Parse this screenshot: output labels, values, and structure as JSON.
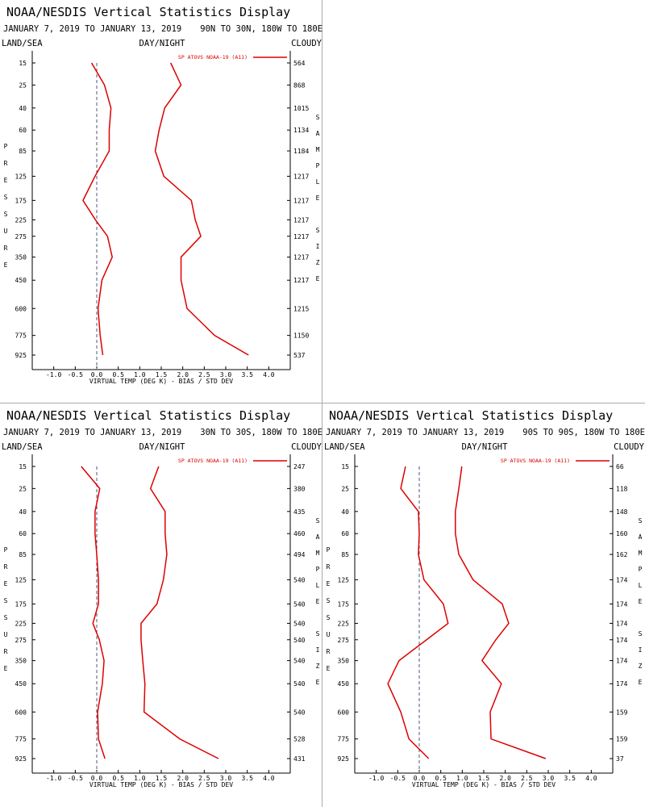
{
  "chart_data": [
    {
      "type": "line",
      "title": "NOAA/NESDIS Vertical Statistics Display",
      "subtitle": "JANUARY 7, 2019 TO JANUARY 13, 2019",
      "region": "90N TO 30N, 180W TO 180E",
      "land_sea": "LAND/SEA",
      "day_night": "DAY/NIGHT",
      "cloudy": "CLOUDY",
      "ylabel": "PRESSURE",
      "y2label": "SAMPLE SIZE",
      "xlabel": "VIRTUAL TEMP (DEG K) - BIAS / STD DEV",
      "ylim": [
        15,
        925
      ],
      "yticks": [
        15,
        25,
        40,
        60,
        85,
        125,
        175,
        225,
        275,
        350,
        450,
        600,
        775,
        925
      ],
      "sample_size": [
        564,
        868,
        1015,
        1134,
        1184,
        1217,
        1217,
        1217,
        1217,
        1217,
        1217,
        1215,
        1150,
        537
      ],
      "xlim": [
        -1.5,
        4.5
      ],
      "xticks": [
        {
          "value": -1,
          "label": "-1.0"
        },
        -0.5,
        {
          "value": 0,
          "label": "0.0"
        },
        0.5,
        {
          "value": 1,
          "label": "1.0"
        },
        1.5,
        {
          "value": 2,
          "label": "2.0"
        },
        2.5,
        {
          "value": 3,
          "label": "3.0"
        },
        3.5,
        {
          "value": 4,
          "label": "4.0"
        }
      ],
      "series": [
        {
          "name": "SP ATOVS NOAA-19 (A11)",
          "color": "#dd0000",
          "bias": [
            -0.12,
            0.18,
            0.33,
            0.29,
            0.29,
            -0.04,
            -0.32,
            -0.03,
            0.25,
            0.36,
            0.12,
            0.03,
            0.08,
            0.14
          ],
          "std_dev": [
            1.72,
            1.96,
            1.58,
            1.45,
            1.36,
            1.56,
            2.2,
            2.29,
            2.42,
            1.96,
            1.96,
            2.1,
            2.74,
            3.53
          ]
        }
      ]
    },
    {
      "type": "line",
      "title": "NOAA/NESDIS Vertical Statistics Display",
      "subtitle": "JANUARY 7, 2019 TO JANUARY 13, 2019",
      "region": "30N TO 30S, 180W TO 180E",
      "land_sea": "LAND/SEA",
      "day_night": "DAY/NIGHT",
      "cloudy": "CLOUDY",
      "ylabel": "PRESSURE",
      "y2label": "SAMPLE SIZE",
      "xlabel": "VIRTUAL TEMP (DEG K) - BIAS / STD DEV",
      "ylim": [
        15,
        925
      ],
      "yticks": [
        15,
        25,
        40,
        60,
        85,
        125,
        175,
        225,
        275,
        350,
        450,
        600,
        775,
        925
      ],
      "sample_size": [
        247,
        380,
        435,
        460,
        494,
        540,
        540,
        540,
        540,
        540,
        540,
        540,
        528,
        431
      ],
      "xlim": [
        -1.5,
        4.5
      ],
      "xticks": [
        {
          "value": -1,
          "label": "-1.0"
        },
        -0.5,
        {
          "value": 0,
          "label": "0.0"
        },
        0.5,
        {
          "value": 1,
          "label": "1.0"
        },
        1.5,
        {
          "value": 2,
          "label": "2.0"
        },
        2.5,
        {
          "value": 3,
          "label": "3.0"
        },
        3.5,
        {
          "value": 4,
          "label": "4.0"
        }
      ],
      "series": [
        {
          "name": "SP ATOVS NOAA-19 (A11)",
          "color": "#dd0000",
          "bias": [
            -0.36,
            0.07,
            -0.04,
            -0.04,
            0,
            0.04,
            0.04,
            -0.09,
            0.06,
            0.17,
            0.13,
            0.02,
            0.04,
            0.19
          ],
          "std_dev": [
            1.44,
            1.25,
            1.59,
            1.59,
            1.63,
            1.55,
            1.4,
            1.03,
            1.03,
            1.07,
            1.12,
            1.1,
            1.93,
            2.83
          ]
        }
      ]
    },
    {
      "type": "line",
      "title": "NOAA/NESDIS Vertical Statistics Display",
      "subtitle": "JANUARY 7, 2019 TO JANUARY 13, 2019",
      "region": "90S TO 90S, 180W TO 180E",
      "land_sea": "LAND/SEA",
      "day_night": "DAY/NIGHT",
      "cloudy": "CLOUDY",
      "ylabel": "PRESSURE",
      "y2label": "SAMPLE SIZE",
      "xlabel": "VIRTUAL TEMP (DEG K) - BIAS / STD DEV",
      "ylim": [
        15,
        925
      ],
      "yticks": [
        15,
        25,
        40,
        60,
        85,
        125,
        175,
        225,
        275,
        350,
        450,
        600,
        775,
        925
      ],
      "sample_size": [
        66,
        118,
        148,
        160,
        162,
        174,
        174,
        174,
        174,
        174,
        174,
        159,
        159,
        37
      ],
      "xlim": [
        -1.5,
        4.5
      ],
      "xticks": [
        {
          "value": -1,
          "label": "-1.0"
        },
        -0.5,
        {
          "value": 0,
          "label": "0.0"
        },
        0.5,
        {
          "value": 1,
          "label": "1.0"
        },
        1.5,
        {
          "value": 2,
          "label": "2.0"
        },
        2.5,
        {
          "value": 3,
          "label": "3.0"
        },
        3.5,
        {
          "value": 4,
          "label": "4.0"
        }
      ],
      "series": [
        {
          "name": "SP ATOVS NOAA-19 (A11)",
          "color": "#dd0000",
          "bias": [
            -0.32,
            -0.43,
            -0.02,
            0,
            -0.02,
            0.11,
            0.56,
            0.67,
            0.17,
            -0.47,
            -0.73,
            -0.43,
            -0.24,
            0.22
          ],
          "std_dev": [
            0.99,
            0.92,
            0.84,
            0.84,
            0.92,
            1.25,
            1.93,
            2.08,
            1.78,
            1.46,
            1.91,
            1.65,
            1.67,
            2.94
          ]
        }
      ]
    }
  ]
}
